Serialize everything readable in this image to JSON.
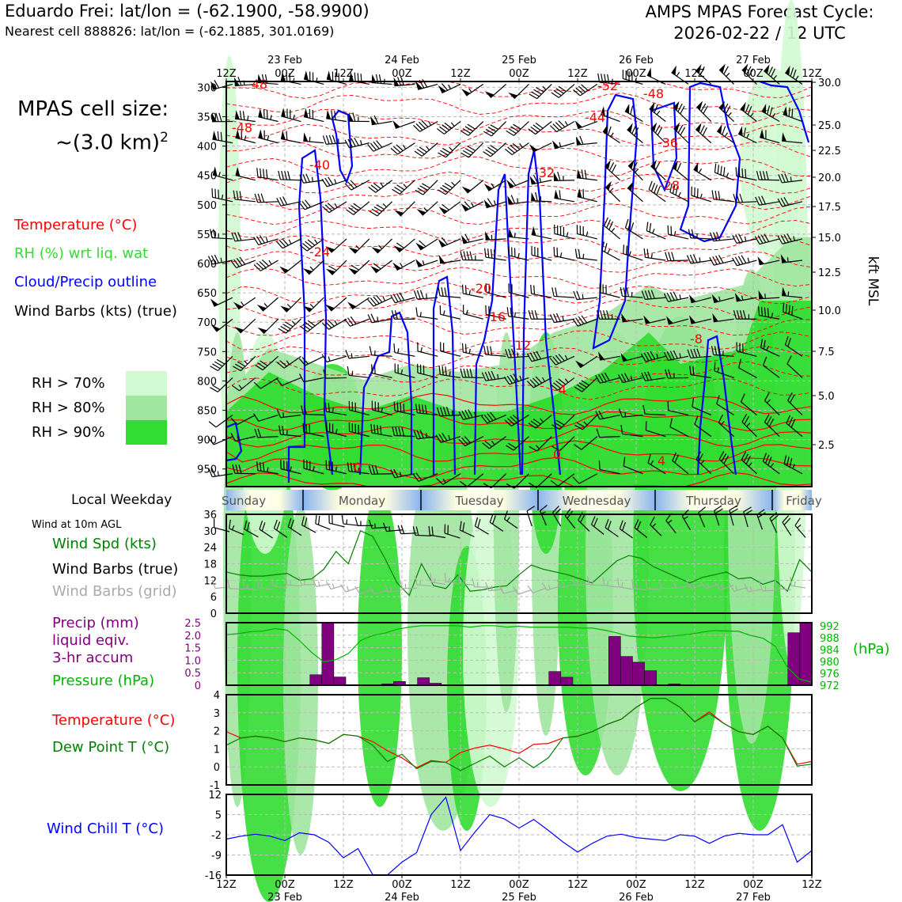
{
  "header": {
    "title_left": "Eduardo Frei: lat/lon = (-62.1900, -58.9900)",
    "subtitle_left": "Nearest cell 888826: lat/lon = (-62.1885, 301.0169)",
    "title_right_line1": "AMPS MPAS Forecast Cycle:",
    "title_right_line2": "2026-02-22 / 12 UTC"
  },
  "cell_size": {
    "line1": "MPAS cell size:",
    "line2": "~(3.0 km)",
    "sup": "2"
  },
  "colors": {
    "temperature": "#ff0000",
    "rh": "#32dc32",
    "cloud": "#0000ff",
    "wind": "#000000",
    "precip": "#800080",
    "pressure": "#00b400",
    "dewpoint": "#008000",
    "windchill": "#0000ff",
    "rh70": "#d2fad2",
    "rh80": "#a0e6a0",
    "rh90": "#32dc32"
  },
  "legend": {
    "temperature": "Temperature (°C)",
    "rh": "RH (%) wrt liq. wat",
    "cloud": "Cloud/Precip outline",
    "wind": "Wind Barbs (kts) (true)",
    "rh70": "RH > 70%",
    "rh80": "RH > 80%",
    "rh90": "RH > 90%"
  },
  "time_axis": {
    "ticks": [
      "12Z",
      "00Z",
      "12Z",
      "00Z",
      "12Z",
      "00Z",
      "12Z",
      "00Z",
      "12Z",
      "00Z",
      "12Z"
    ],
    "dates": [
      "23 Feb",
      "24 Feb",
      "25 Feb",
      "26 Feb",
      "27 Feb"
    ]
  },
  "weekday": {
    "label": "Local Weekday",
    "days": [
      "Sunday",
      "Monday",
      "Tuesday",
      "Wednesday",
      "Thursday",
      "Friday"
    ]
  },
  "chart_data": [
    {
      "type": "heatmap",
      "name_text": "cross-section",
      "y_left_ticks": [
        "300",
        "350",
        "400",
        "450",
        "500",
        "550",
        "600",
        "650",
        "700",
        "750",
        "800",
        "850",
        "900",
        "950"
      ],
      "y_right_ticks": [
        "30.0",
        "25.0",
        "22.5",
        "20.0",
        "17.5",
        "15.0",
        "12.5",
        "10.0",
        "7.5",
        "5.0",
        "2.5"
      ],
      "y_right_label": "kft MSL",
      "temp_labels": [
        "-48",
        "-48",
        "-40",
        "-24",
        "-20",
        "-16",
        "-12",
        "-4",
        "0",
        "0",
        "-52",
        "-48",
        "-44",
        "-36",
        "-32",
        "-28",
        "-8",
        "4"
      ]
    },
    {
      "type": "line",
      "panel_label": "Wind at 10m AGL",
      "legend": [
        "Wind Spd (kts)",
        "Wind Barbs (true)",
        "Wind Barbs (grid)"
      ],
      "y_ticks": [
        "36",
        "30",
        "24",
        "18",
        "12",
        "6",
        "0"
      ],
      "ylim": [
        0,
        36
      ],
      "series": [
        {
          "name": "Wind Spd (kts)",
          "values": [
            15,
            14,
            13.5,
            13.5,
            14,
            14.5,
            12,
            12.5,
            16,
            22.5,
            18,
            30,
            28,
            20,
            11,
            6.5,
            18,
            10,
            9,
            14,
            8,
            8.5,
            9.5,
            10,
            14,
            17.5,
            16,
            15,
            14,
            12.5,
            11,
            15,
            19,
            21,
            20,
            17,
            15,
            13,
            11,
            13,
            14,
            15,
            12.5,
            13,
            10.5,
            12,
            8,
            19.5,
            15
          ]
        }
      ]
    },
    {
      "type": "bar",
      "legend": [
        "Precip (mm)",
        "liquid eqiv.",
        "3-hr accum",
        "Pressure (hPa)"
      ],
      "y_left_ticks": [
        "2.5",
        "2.0",
        "1.5",
        "1.0",
        "0.5",
        "0"
      ],
      "y_right_ticks": [
        "992",
        "988",
        "984",
        "980",
        "976",
        "972"
      ],
      "y_right_label": "(hPa)",
      "ylim": [
        0,
        2.5
      ],
      "precip": [
        0,
        0,
        0,
        0,
        0,
        0,
        0,
        0.42,
        2.5,
        0.33,
        0,
        0,
        0,
        0.05,
        0.15,
        0,
        0.3,
        0.08,
        0,
        0,
        0,
        0,
        0,
        0,
        0,
        0,
        0,
        0.55,
        0.32,
        0,
        0,
        0,
        1.95,
        1.15,
        0.92,
        0.58,
        0,
        0.05,
        0,
        0,
        0,
        0,
        0,
        0,
        0,
        0,
        0,
        2.1,
        2.5
      ],
      "pressure": [
        989,
        989.3,
        990,
        990.2,
        991,
        990.5,
        987,
        983,
        979.8,
        980.6,
        982.6,
        987,
        988.7,
        989.5,
        990.8,
        991.5,
        992,
        992,
        992,
        992,
        991.5,
        992,
        992,
        991.5,
        991.8,
        991.5,
        991.5,
        991.5,
        991.5,
        991.2,
        991.2,
        990.5,
        989.6,
        988.5,
        988.2,
        987.9,
        988.3,
        988.7,
        989.1,
        989.8,
        990.4,
        990.2,
        990.1,
        988.7,
        987.8,
        985.1,
        978,
        974,
        973
      ]
    },
    {
      "type": "line",
      "legend": [
        "Temperature (°C)",
        "Dew Point T (°C)"
      ],
      "y_ticks": [
        "4",
        "3",
        "2",
        "1",
        "0",
        "-1"
      ],
      "ylim": [
        -1,
        4
      ],
      "series": [
        {
          "name": "Temperature (°C)",
          "values": [
            1.95,
            1.6,
            1.7,
            1.6,
            1.4,
            1.6,
            1.5,
            1.3,
            1.8,
            1.7,
            1.4,
            0.9,
            0.5,
            -0.05,
            0.35,
            0.25,
            0.8,
            1.05,
            1.2,
            1.0,
            0.75,
            1.25,
            1.3,
            1.6,
            1.7,
            1.95,
            2.35,
            2.65,
            3.3,
            3.8,
            3.8,
            3.3,
            2.5,
            3.05,
            2.4,
            1.95,
            1.8,
            2.25,
            1.6,
            0.15,
            0.3
          ]
        },
        {
          "name": "Dew Point T (°C)",
          "values": [
            1.2,
            1.6,
            1.7,
            1.6,
            1.4,
            1.6,
            1.5,
            1.3,
            1.8,
            1.7,
            1.2,
            0.3,
            0.7,
            -0.1,
            0.3,
            0.25,
            -0.2,
            0.2,
            0.6,
            0.0,
            0.5,
            -0.05,
            0.5,
            1.6,
            1.7,
            1.95,
            2.35,
            2.65,
            3.3,
            3.8,
            3.8,
            3.3,
            2.5,
            2.95,
            2.4,
            1.95,
            1.8,
            2.25,
            1.6,
            0.05,
            0.15
          ]
        }
      ]
    },
    {
      "type": "line",
      "legend": [
        "Wind Chill T (°C)"
      ],
      "y_ticks": [
        "12",
        "5",
        "-2",
        "-9",
        "-16"
      ],
      "ylim": [
        -16,
        12
      ],
      "series": [
        {
          "name": "Wind Chill T (°C)",
          "values": [
            -3.5,
            -2.5,
            -1.8,
            -2.5,
            -4.0,
            -1.3,
            -2.0,
            -4.6,
            -10.0,
            -6.8,
            -15.8,
            -16.0,
            -11.5,
            -8.2,
            5.0,
            11.0,
            -7.5,
            -1.0,
            5.0,
            3.5,
            0.3,
            3.3,
            -0.5,
            -4.5,
            -8.0,
            -5.0,
            -2.5,
            -1.8,
            -3.0,
            -3.5,
            -4.0,
            -2.0,
            -2.5,
            -5.0,
            -2.5,
            -1.5,
            -2.0,
            -2.0,
            1.5,
            -11.5,
            -7.5
          ]
        }
      ]
    }
  ]
}
